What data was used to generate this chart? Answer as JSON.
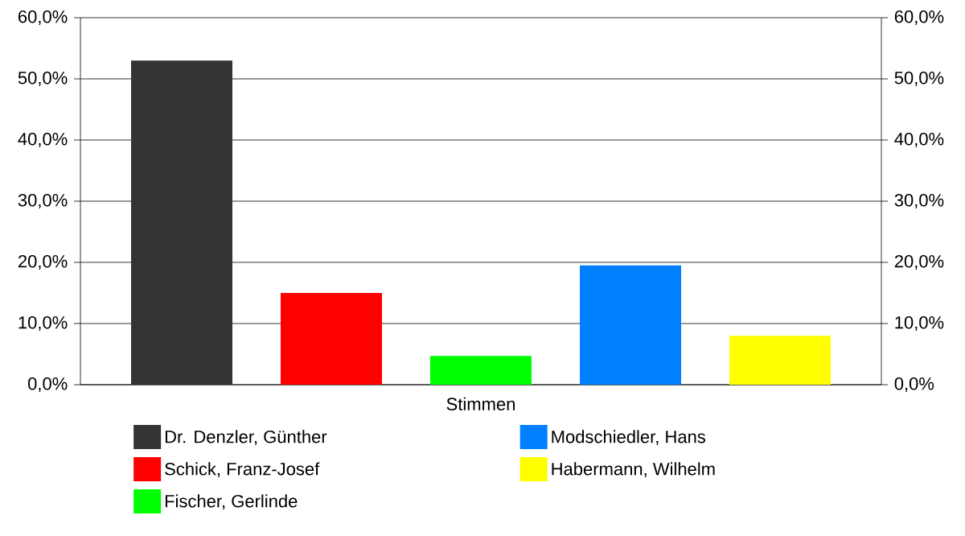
{
  "chart_data": {
    "type": "bar",
    "categories": [
      "Stimmen"
    ],
    "series": [
      {
        "name": "Dr. Denzler, Günther",
        "color": "#333333",
        "values": [
          53.0
        ]
      },
      {
        "name": "Schick, Franz-Josef",
        "color": "#ff0000",
        "values": [
          15.0
        ]
      },
      {
        "name": "Fischer, Gerlinde",
        "color": "#00ff00",
        "values": [
          4.7
        ]
      },
      {
        "name": "Modschiedler, Hans",
        "color": "#0080ff",
        "values": [
          19.5
        ]
      },
      {
        "name": "Habermann, Wilhelm",
        "color": "#ffff00",
        "values": [
          8.0
        ]
      }
    ],
    "ylim": [
      0,
      60
    ],
    "yticks": [
      {
        "value": 0,
        "label": "0,0%"
      },
      {
        "value": 10,
        "label": "10,0%"
      },
      {
        "value": 20,
        "label": "20,0%"
      },
      {
        "value": 30,
        "label": "30,0%"
      },
      {
        "value": 40,
        "label": "40,0%"
      },
      {
        "value": 50,
        "label": "50,0%"
      },
      {
        "value": 60,
        "label": "60,0%"
      }
    ],
    "grid": "y",
    "legend": "bottom"
  }
}
